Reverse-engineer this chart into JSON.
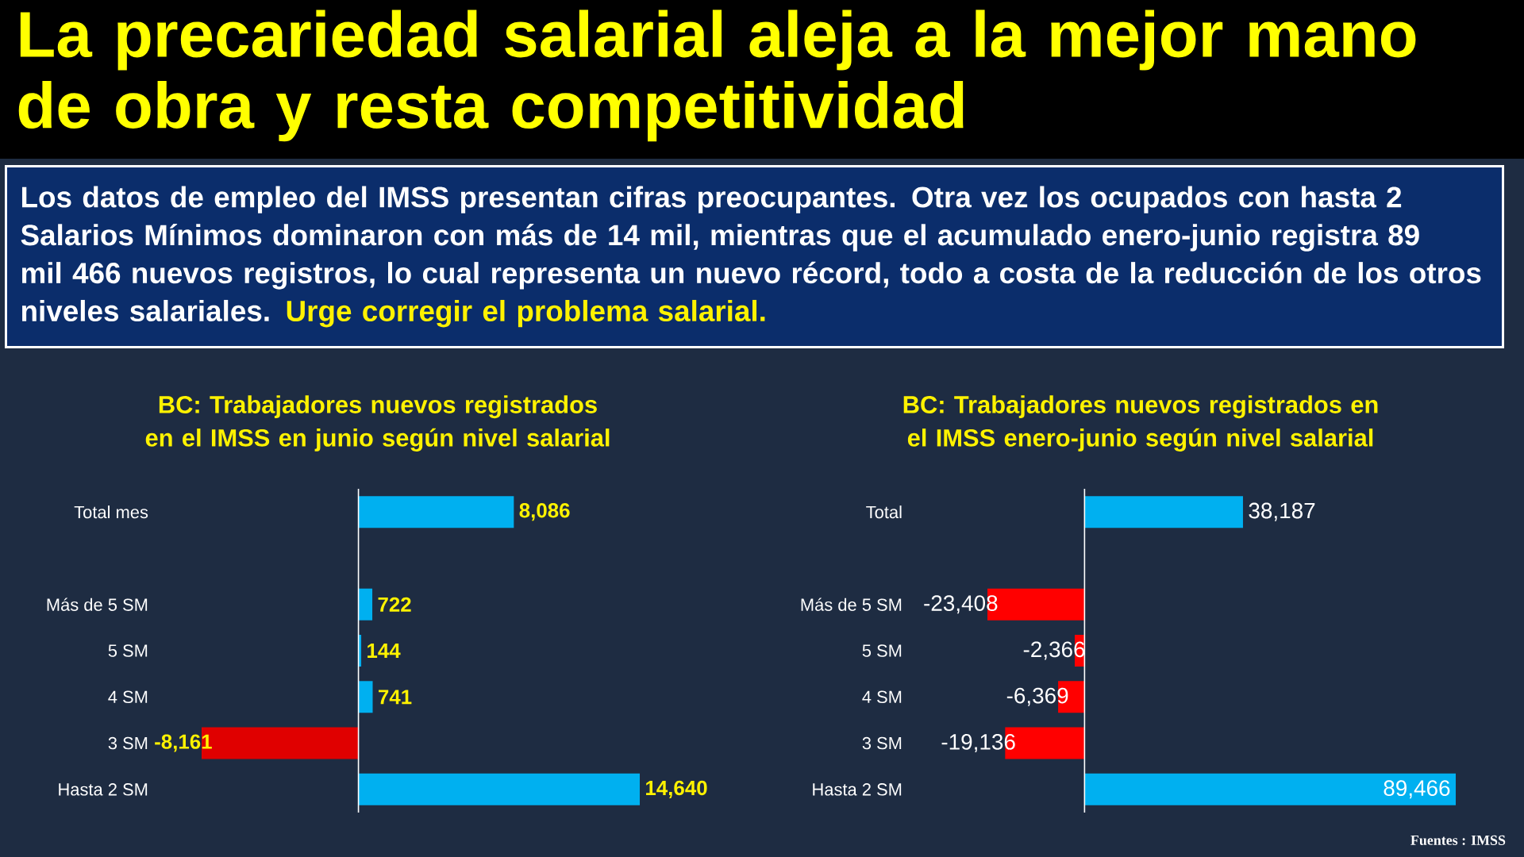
{
  "chart_data": [
    {
      "type": "other",
      "title": "La precariedad salarial aleja a la mejor mano de obra y resta competitividad",
      "annotations": [
        "Los datos de empleo del IMSS presentan cifras preocupantes. Otra vez los ocupados con hasta 2 Salarios Mínimos dominaron con más de 14 mil, mientras que el acumulado enero-junio registra 89 mil 466 nuevos registros, lo cual representa un nuevo récord, todo a costa de la reducción de los otros niveles salariales.",
        "Urge corregir el problema salarial."
      ]
    },
    {
      "type": "bar",
      "orientation": "horizontal",
      "title": "BC: Trabajadores nuevos registrados en el IMSS en junio según nivel salarial",
      "categories": [
        "Total  mes",
        null,
        "Más de 5 SM",
        "5 SM",
        "4 SM",
        "3 SM",
        "Hasta 2 SM"
      ],
      "values": [
        8086,
        null,
        722,
        144,
        741,
        -8161,
        14640
      ],
      "colors": [
        "#00b0f0",
        null,
        "#00b0f0",
        "#00b0f0",
        "#00b0f0",
        "#e00000",
        "#00b0f0"
      ],
      "value_labels": [
        "8,086",
        null,
        "722",
        "144",
        "741",
        "-8,161",
        "14,640"
      ],
      "tick_labels": "y"
    },
    {
      "type": "bar",
      "orientation": "horizontal",
      "title": "BC: Trabajadores nuevos registrados en el IMSS enero-junio según nivel salarial",
      "categories": [
        "Total",
        null,
        "Más de 5 SM",
        "5 SM",
        "4 SM",
        "3 SM",
        "Hasta 2 SM"
      ],
      "values": [
        38187,
        null,
        -23408,
        -2366,
        -6369,
        -19136,
        89466
      ],
      "colors": [
        "#00b0f0",
        null,
        "#ff0000",
        "#ff0000",
        "#ff0000",
        "#ff0000",
        "#00b0f0"
      ],
      "value_labels": [
        "38,187",
        null,
        "-23,408",
        "-2,366",
        "-6,369",
        "-19,136",
        "89,466"
      ],
      "tick_labels": "y",
      "annotations": [
        "Fuentes : IMSS"
      ]
    }
  ]
}
